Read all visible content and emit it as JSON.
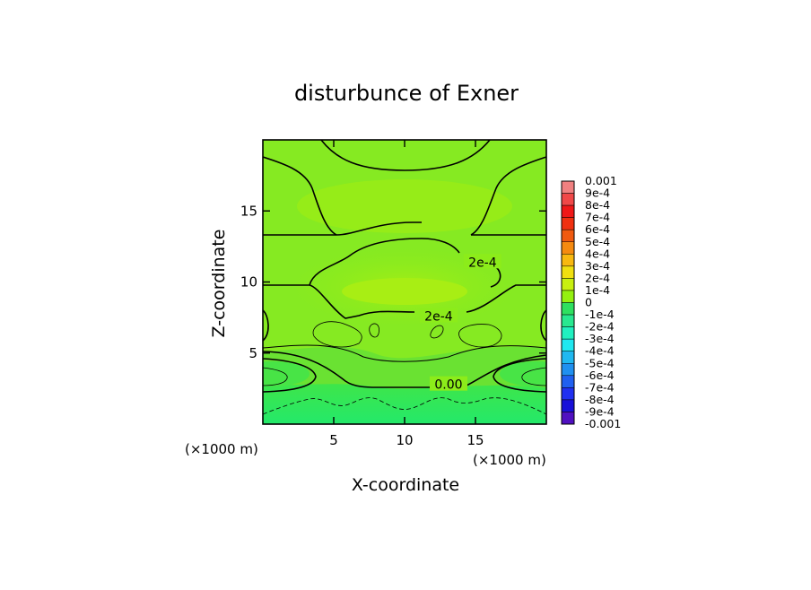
{
  "chart_data": {
    "type": "contour",
    "title": "disturbunce of Exner",
    "xlabel": "X-coordinate",
    "ylabel": "Z-coordinate",
    "x_unit_labels": [
      "(×1000 m)",
      "(×1000 m)"
    ],
    "xlim": [
      0,
      20
    ],
    "ylim": [
      0,
      20
    ],
    "x_ticks": [
      5,
      10,
      15
    ],
    "y_ticks": [
      5,
      10,
      15
    ],
    "contour_labels": [
      {
        "text": "2e-4",
        "x": 15.5,
        "y": 11.4
      },
      {
        "text": "2e-4",
        "x": 12.4,
        "y": 7.6
      },
      {
        "text": "0.00",
        "x": 13.1,
        "y": 2.8
      }
    ],
    "colorbar": {
      "labels": [
        "0.001",
        "9e-4",
        "8e-4",
        "7e-4",
        "6e-4",
        "5e-4",
        "4e-4",
        "3e-4",
        "2e-4",
        "1e-4",
        "0",
        "-1e-4",
        "-2e-4",
        "-3e-4",
        "-4e-4",
        "-5e-4",
        "-6e-4",
        "-7e-4",
        "-8e-4",
        "-9e-4",
        "-0.001"
      ],
      "colors": [
        "#f08080",
        "#f04848",
        "#f01818",
        "#f03010",
        "#f05a10",
        "#f58a10",
        "#f8b810",
        "#f0e010",
        "#c8f010",
        "#94f010",
        "#2ee060",
        "#28e890",
        "#20f0c0",
        "#20e8f0",
        "#20b8f0",
        "#2090f0",
        "#2060f0",
        "#2030f0",
        "#1810d8",
        "#5010c0"
      ]
    },
    "grid": false,
    "legend": "colorbar-right"
  }
}
